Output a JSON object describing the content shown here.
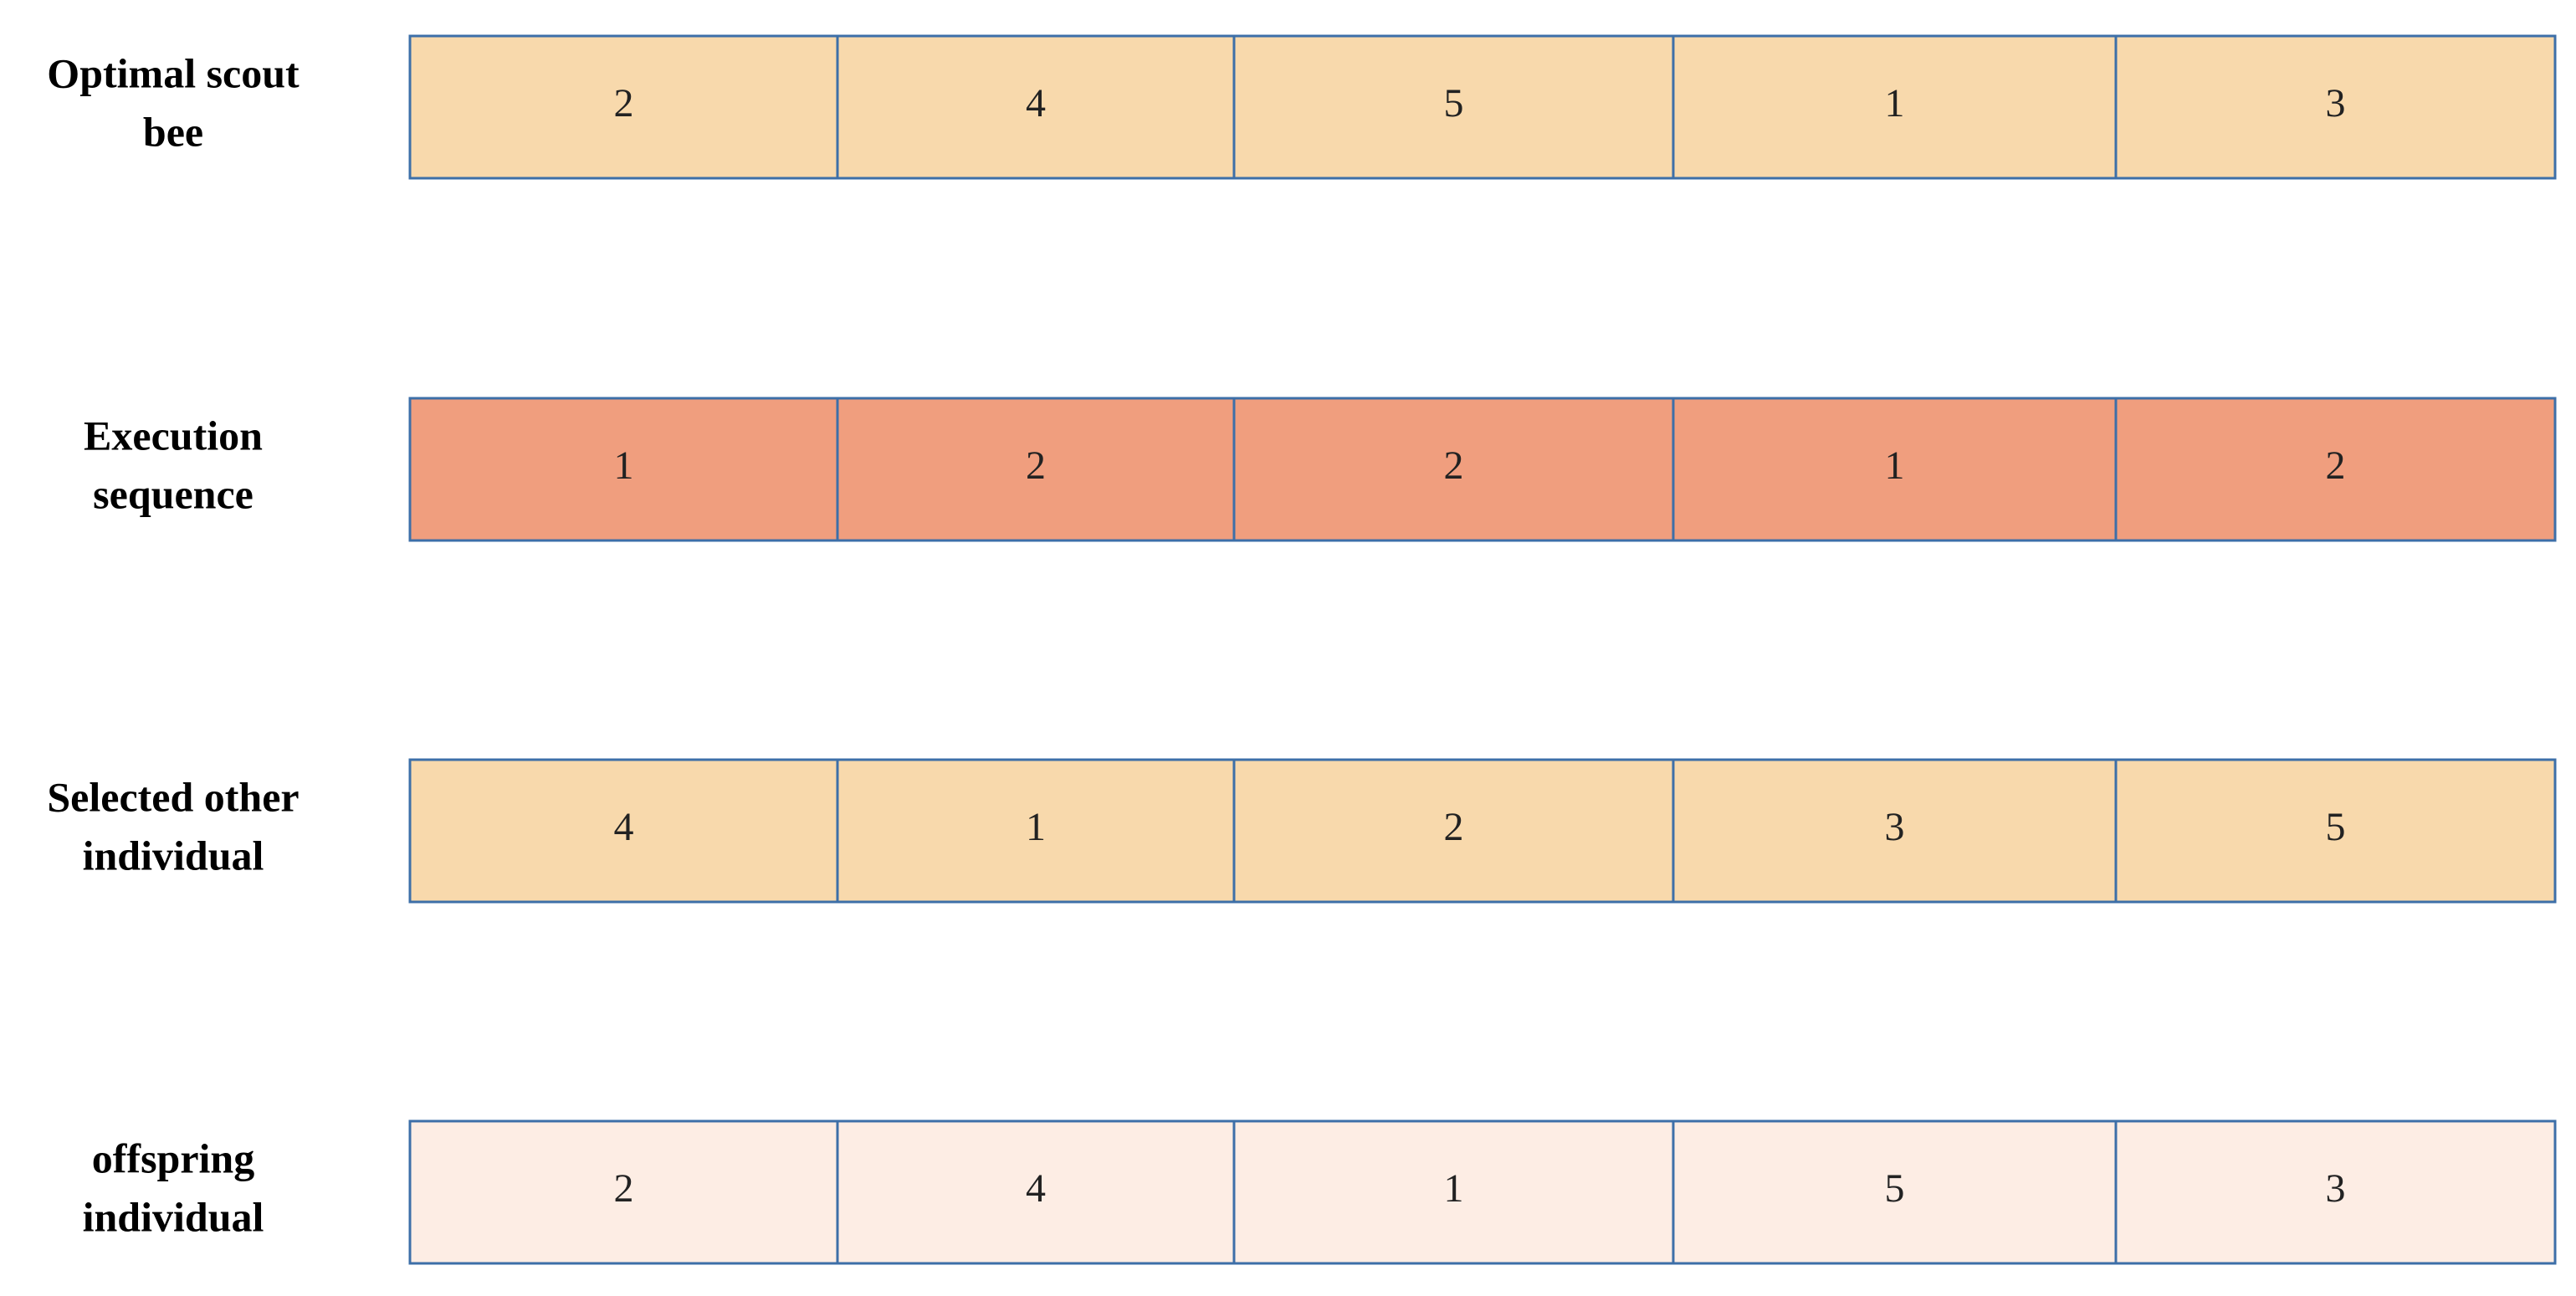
{
  "rows": [
    {
      "label": [
        "Optimal scout",
        "bee"
      ],
      "color": "#f8d9ac",
      "cells": [
        2,
        4,
        5,
        1,
        3
      ]
    },
    {
      "label": [
        "Execution",
        "sequence"
      ],
      "color": "#f09e7e",
      "cells": [
        1,
        2,
        2,
        1,
        2
      ]
    },
    {
      "label": [
        "Selected other",
        "individual"
      ],
      "color": "#f8d9ac",
      "cells": [
        4,
        1,
        2,
        3,
        5
      ]
    },
    {
      "label": [
        "offspring",
        "individual"
      ],
      "color": "#fdede4",
      "cells": [
        2,
        4,
        1,
        5,
        3
      ]
    }
  ]
}
